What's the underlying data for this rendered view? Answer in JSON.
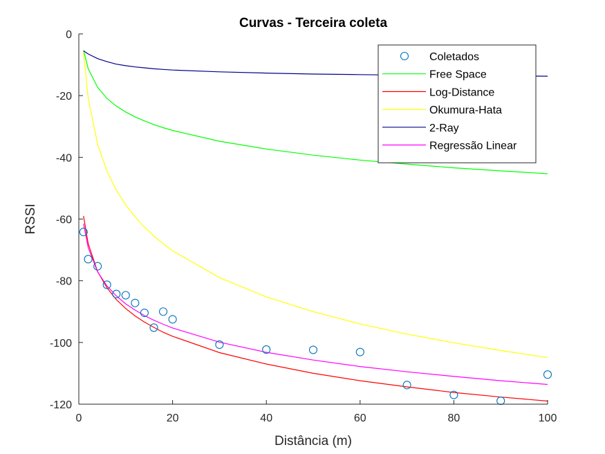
{
  "chart_data": {
    "type": "line",
    "title": "Curvas - Terceira coleta",
    "xlabel": "Distância (m)",
    "ylabel": "RSSI",
    "xlim": [
      0,
      100
    ],
    "ylim": [
      -120,
      0
    ],
    "xticks": [
      0,
      20,
      40,
      60,
      80,
      100
    ],
    "yticks": [
      0,
      -20,
      -40,
      -60,
      -80,
      -100,
      -120
    ],
    "grid": false,
    "legend_position": "top-right",
    "series": [
      {
        "name": "Coletados",
        "kind": "scatter",
        "color": "#0072BD",
        "x": [
          1,
          2,
          4,
          6,
          8,
          10,
          12,
          14,
          16,
          18,
          20,
          30,
          40,
          50,
          60,
          70,
          80,
          90,
          100
        ],
        "y": [
          -64.2,
          -73.0,
          -75.3,
          -81.3,
          -84.3,
          -84.7,
          -87.2,
          -90.4,
          -95.2,
          -90.0,
          -92.5,
          -100.7,
          -102.3,
          -102.4,
          -103.1,
          -113.8,
          -117.0,
          -118.9,
          -110.4
        ]
      },
      {
        "name": "Free Space",
        "kind": "line",
        "color": "#00ff00",
        "x": [
          1,
          2,
          4,
          6,
          8,
          10,
          12,
          14,
          16,
          18,
          20,
          30,
          40,
          50,
          60,
          70,
          80,
          90,
          100
        ],
        "y": [
          -5.3,
          -11.3,
          -17.3,
          -20.9,
          -23.4,
          -25.3,
          -26.9,
          -28.2,
          -29.4,
          -30.4,
          -31.3,
          -34.8,
          -37.3,
          -39.3,
          -40.9,
          -42.2,
          -43.4,
          -44.4,
          -45.3
        ]
      },
      {
        "name": "Log-Distance",
        "kind": "line",
        "color": "#ff0000",
        "x": [
          1,
          2,
          4,
          6,
          8,
          10,
          12,
          14,
          16,
          18,
          20,
          30,
          40,
          50,
          60,
          70,
          80,
          90,
          100
        ],
        "y": [
          -59.0,
          -68.0,
          -77.0,
          -82.3,
          -86.1,
          -89.0,
          -91.4,
          -93.4,
          -95.1,
          -96.7,
          -98.0,
          -103.3,
          -107.0,
          -110.0,
          -112.4,
          -114.4,
          -116.2,
          -117.7,
          -119.0
        ]
      },
      {
        "name": "Okumura-Hata",
        "kind": "line",
        "color": "#ffff00",
        "x": [
          1,
          2,
          4,
          6,
          8,
          10,
          12,
          14,
          16,
          18,
          20,
          30,
          40,
          50,
          60,
          70,
          80,
          90,
          100
        ],
        "y": [
          -6.0,
          -20.9,
          -35.7,
          -44.5,
          -50.6,
          -55.4,
          -59.3,
          -62.6,
          -65.5,
          -68.0,
          -70.3,
          -79.0,
          -85.2,
          -90.0,
          -94.0,
          -97.3,
          -100.1,
          -102.6,
          -104.9
        ]
      },
      {
        "name": "2-Ray",
        "kind": "line",
        "color": "#00008b",
        "x": [
          1,
          2,
          4,
          6,
          8,
          10,
          12,
          14,
          16,
          18,
          20,
          30,
          40,
          50,
          60,
          70,
          80,
          90,
          100
        ],
        "y": [
          -5.5,
          -6.5,
          -8.0,
          -9.0,
          -9.8,
          -10.3,
          -10.7,
          -11.0,
          -11.3,
          -11.5,
          -11.7,
          -12.3,
          -12.7,
          -13.0,
          -13.2,
          -13.4,
          -13.5,
          -13.6,
          -13.7
        ]
      },
      {
        "name": "Regressão Linear",
        "kind": "line",
        "color": "#ff00ff",
        "x": [
          1,
          2,
          4,
          6,
          8,
          10,
          12,
          14,
          16,
          18,
          20,
          30,
          40,
          50,
          60,
          70,
          80,
          90,
          100
        ],
        "y": [
          -61.5,
          -69.3,
          -77.1,
          -81.7,
          -84.9,
          -87.5,
          -89.5,
          -91.3,
          -92.8,
          -94.1,
          -95.3,
          -99.9,
          -103.2,
          -105.7,
          -107.8,
          -109.5,
          -111.0,
          -112.4,
          -113.6
        ]
      }
    ]
  }
}
